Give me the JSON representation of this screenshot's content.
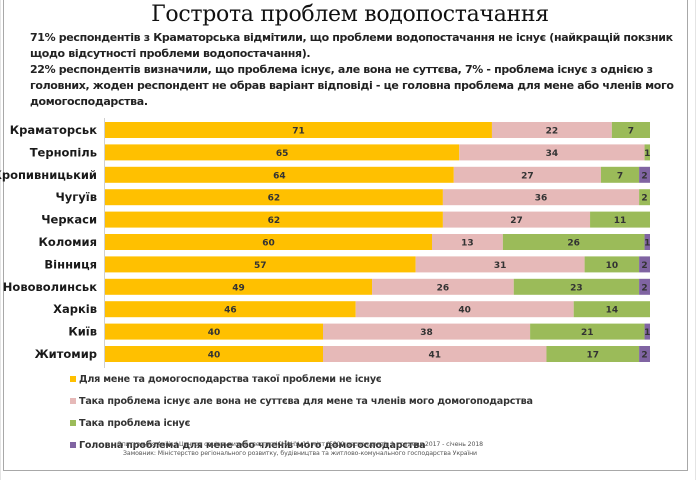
{
  "chart_data": {
    "type": "bar",
    "orientation": "horizontal",
    "stacked": true,
    "title": "Гострота проблем водопостачання",
    "description": [
      "71% респондентів з Краматорська відмітили, що проблеми водопостачання не існує (найкращій покзник щодо відсутності проблеми водопостачання).",
      "22% респондентів визначили, що проблема існує, але вона не суттєва, 7% - проблема існує з однією з головних, жоден респондент не обрав варіант відповіді - це головна проблема для мене або членів мого домогосподарства."
    ],
    "categories": [
      "Краматорськ",
      "Тернопіль",
      "Кропивницький",
      "Чугуїв",
      "Черкаси",
      "Коломия",
      "Вінниця",
      "Нововолинськ",
      "Харків",
      "Київ",
      "Житомир"
    ],
    "series": [
      {
        "name": "Для мене та домогосподарства такої проблеми не існує",
        "color": "#ffc000",
        "values": [
          71,
          65,
          64,
          62,
          62,
          60,
          57,
          49,
          46,
          40,
          40
        ]
      },
      {
        "name": "Така проблема існує але вона не суттєва для мене та членів мого домогоподарства",
        "color": "#e6b9b8",
        "values": [
          22,
          34,
          27,
          36,
          27,
          13,
          31,
          26,
          40,
          38,
          41
        ]
      },
      {
        "name": "Така проблема існує",
        "color": "#9bbb59",
        "values": [
          7,
          1,
          7,
          2,
          11,
          26,
          10,
          23,
          14,
          21,
          17
        ]
      },
      {
        "name": "Головна проблема для мене або членів мого домогосподарства",
        "color": "#8064a2",
        "values": [
          0,
          0,
          2,
          0,
          0,
          1,
          2,
          2,
          0,
          1,
          2
        ]
      }
    ],
    "xlim": [
      0,
      100
    ],
    "data_labels": true,
    "grid": false,
    "legend": "bottom-left",
    "source": [
      "Опитування Agilis / Центру соціальних експертиз ІСНАНУ, 11 міст (5800 респондентів ), грудень 2017 - січень 2018",
      "Замовник: Міністерство регіонального розвитку, будівництва та житлово-комунального господарства України"
    ]
  }
}
